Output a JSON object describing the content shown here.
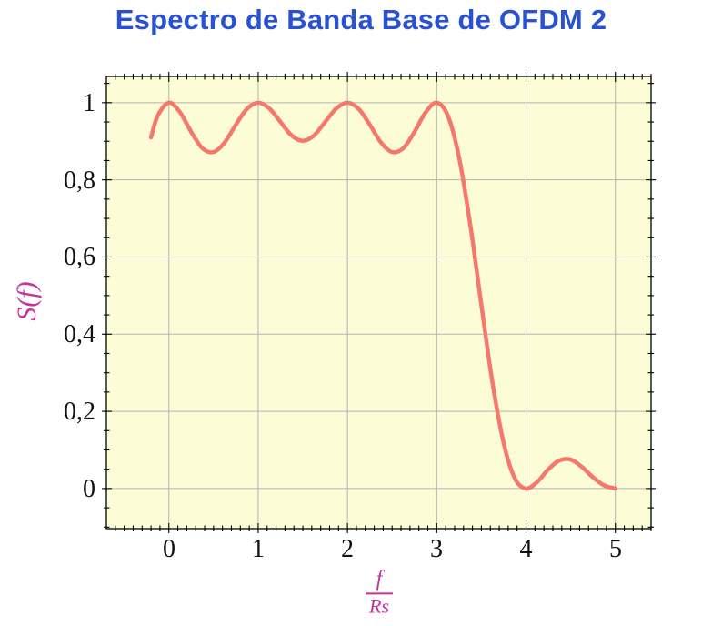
{
  "title": "Espectro de Banda Base de OFDM 2",
  "colors": {
    "title": "#2952d3",
    "curve": "#f4786c",
    "axis_label": "#c6329f",
    "plot_bg": "#fcfcd6",
    "grid": "#b3b3b3",
    "frame": "#000000",
    "tick_label": "#111111"
  },
  "chart_data": {
    "type": "line",
    "title": "Espectro de Banda Base de OFDM 2",
    "ylabel": "S(f)",
    "xlabel_numerator": "f",
    "xlabel_denominator": "Rs",
    "xlim": [
      -0.7,
      5.4
    ],
    "ylim": [
      -0.104,
      1.068
    ],
    "grid": true,
    "x_major_ticks": [
      0,
      1,
      2,
      3,
      4,
      5
    ],
    "x_tick_labels": [
      "0",
      "1",
      "2",
      "3",
      "4",
      "5"
    ],
    "y_major_ticks": [
      0,
      0.2,
      0.4,
      0.6,
      0.8,
      1
    ],
    "y_tick_labels": [
      "0",
      "0,2",
      "0,4",
      "0,6",
      "0,8",
      "1"
    ],
    "x_minor_step": 0.1,
    "y_minor_step": 0.05,
    "series": [
      {
        "name": "S(f)",
        "x": [
          -0.2,
          -0.125,
          0,
          0.125,
          0.25,
          0.375,
          0.5,
          0.625,
          0.75,
          0.875,
          1,
          1.125,
          1.25,
          1.375,
          1.5,
          1.625,
          1.75,
          1.875,
          2,
          2.125,
          2.25,
          2.375,
          2.5,
          2.625,
          2.75,
          2.875,
          3,
          3.125,
          3.25,
          3.375,
          3.5,
          3.625,
          3.75,
          3.875,
          4,
          4.125,
          4.25,
          4.375,
          4.5,
          4.625,
          4.75,
          4.875,
          5
        ],
        "y": [
          0.91,
          0.966,
          1.0,
          0.975,
          0.924,
          0.882,
          0.872,
          0.897,
          0.943,
          0.984,
          1.0,
          0.985,
          0.95,
          0.915,
          0.901,
          0.915,
          0.95,
          0.985,
          1.0,
          0.984,
          0.943,
          0.897,
          0.872,
          0.882,
          0.924,
          0.975,
          1.0,
          0.966,
          0.858,
          0.684,
          0.475,
          0.273,
          0.117,
          0.026,
          0.0,
          0.017,
          0.05,
          0.073,
          0.075,
          0.056,
          0.029,
          0.008,
          0.0
        ]
      }
    ]
  }
}
